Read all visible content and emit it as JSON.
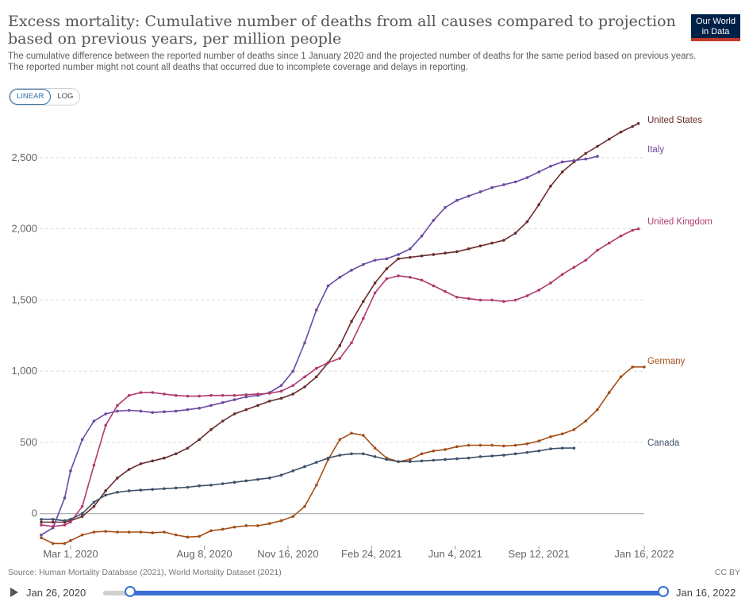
{
  "title": "Excess mortality: Cumulative number of deaths from all causes compared to projection based on previous years, per million people",
  "subtitle": "The cumulative difference between the reported number of deaths since 1 January 2020 and the projected number of deaths for the same period based on previous years. The reported number might not count all deaths that occurred due to incomplete coverage and delays in reporting.",
  "logo": {
    "line1": "Our World",
    "line2": "in Data"
  },
  "scale_toggle": {
    "linear": "LINEAR",
    "log": "LOG",
    "selected": "linear"
  },
  "footer": {
    "source": "Source: Human Mortality Database (2021), World Mortality Dataset (2021)",
    "license": "CC BY"
  },
  "timeline": {
    "start": "Jan 26, 2020",
    "end": "Jan 16, 2022"
  },
  "colors": {
    "us": "#6b2c2c",
    "it": "#6b49a3",
    "uk": "#b03a6e",
    "de": "#a44e17",
    "ca": "#3e5069",
    "grid": "#dddddd"
  },
  "chart_data": {
    "type": "line",
    "x_axis": {
      "type": "date",
      "min": "2020-01-26",
      "max": "2022-01-16",
      "ticks": [
        {
          "date": "2020-03-01",
          "label": "Mar 1, 2020"
        },
        {
          "date": "2020-08-08",
          "label": "Aug 8, 2020"
        },
        {
          "date": "2020-11-16",
          "label": "Nov 16, 2020"
        },
        {
          "date": "2021-02-24",
          "label": "Feb 24, 2021"
        },
        {
          "date": "2021-06-04",
          "label": "Jun 4, 2021"
        },
        {
          "date": "2021-09-12",
          "label": "Sep 12, 2021"
        },
        {
          "date": "2022-01-16",
          "label": "Jan 16, 2022"
        }
      ]
    },
    "y_axis": {
      "min": -230,
      "max": 2800,
      "ticks": [
        {
          "value": 0,
          "label": "0"
        },
        {
          "value": 500,
          "label": "500"
        },
        {
          "value": 1000,
          "label": "1,000"
        },
        {
          "value": 1500,
          "label": "1,500"
        },
        {
          "value": 2000,
          "label": "2,000"
        },
        {
          "value": 2500,
          "label": "2,500"
        }
      ],
      "grid": true
    },
    "series": [
      {
        "name": "United States",
        "color_key": "us",
        "points": [
          [
            "2020-01-26",
            -60
          ],
          [
            "2020-02-09",
            -60
          ],
          [
            "2020-02-23",
            -60
          ],
          [
            "2020-03-01",
            -50
          ],
          [
            "2020-03-15",
            -20
          ],
          [
            "2020-03-29",
            50
          ],
          [
            "2020-04-12",
            160
          ],
          [
            "2020-04-26",
            250
          ],
          [
            "2020-05-10",
            310
          ],
          [
            "2020-05-24",
            350
          ],
          [
            "2020-06-07",
            370
          ],
          [
            "2020-06-21",
            390
          ],
          [
            "2020-07-05",
            420
          ],
          [
            "2020-07-19",
            460
          ],
          [
            "2020-08-02",
            520
          ],
          [
            "2020-08-16",
            590
          ],
          [
            "2020-08-30",
            650
          ],
          [
            "2020-09-13",
            700
          ],
          [
            "2020-09-27",
            730
          ],
          [
            "2020-10-11",
            760
          ],
          [
            "2020-10-25",
            790
          ],
          [
            "2020-11-08",
            810
          ],
          [
            "2020-11-22",
            840
          ],
          [
            "2020-12-06",
            890
          ],
          [
            "2020-12-20",
            960
          ],
          [
            "2021-01-03",
            1060
          ],
          [
            "2021-01-17",
            1180
          ],
          [
            "2021-01-31",
            1350
          ],
          [
            "2021-02-14",
            1490
          ],
          [
            "2021-02-28",
            1620
          ],
          [
            "2021-03-14",
            1720
          ],
          [
            "2021-03-28",
            1790
          ],
          [
            "2021-04-11",
            1800
          ],
          [
            "2021-04-25",
            1810
          ],
          [
            "2021-05-09",
            1820
          ],
          [
            "2021-05-23",
            1830
          ],
          [
            "2021-06-06",
            1840
          ],
          [
            "2021-06-20",
            1860
          ],
          [
            "2021-07-04",
            1880
          ],
          [
            "2021-07-18",
            1900
          ],
          [
            "2021-08-01",
            1920
          ],
          [
            "2021-08-15",
            1970
          ],
          [
            "2021-08-29",
            2050
          ],
          [
            "2021-09-12",
            2170
          ],
          [
            "2021-09-26",
            2300
          ],
          [
            "2021-10-10",
            2400
          ],
          [
            "2021-10-24",
            2470
          ],
          [
            "2021-11-07",
            2530
          ],
          [
            "2021-11-21",
            2580
          ],
          [
            "2021-12-05",
            2630
          ],
          [
            "2021-12-19",
            2680
          ],
          [
            "2022-01-02",
            2720
          ],
          [
            "2022-01-09",
            2740
          ]
        ]
      },
      {
        "name": "Italy",
        "color_key": "it",
        "points": [
          [
            "2020-01-26",
            -150
          ],
          [
            "2020-02-09",
            -100
          ],
          [
            "2020-02-23",
            110
          ],
          [
            "2020-03-01",
            300
          ],
          [
            "2020-03-15",
            520
          ],
          [
            "2020-03-29",
            650
          ],
          [
            "2020-04-12",
            700
          ],
          [
            "2020-04-26",
            720
          ],
          [
            "2020-05-10",
            725
          ],
          [
            "2020-05-24",
            720
          ],
          [
            "2020-06-07",
            710
          ],
          [
            "2020-06-21",
            715
          ],
          [
            "2020-07-05",
            720
          ],
          [
            "2020-07-19",
            730
          ],
          [
            "2020-08-02",
            740
          ],
          [
            "2020-08-16",
            760
          ],
          [
            "2020-08-30",
            780
          ],
          [
            "2020-09-13",
            800
          ],
          [
            "2020-09-27",
            820
          ],
          [
            "2020-10-11",
            830
          ],
          [
            "2020-10-25",
            850
          ],
          [
            "2020-11-08",
            900
          ],
          [
            "2020-11-22",
            1000
          ],
          [
            "2020-12-06",
            1200
          ],
          [
            "2020-12-20",
            1430
          ],
          [
            "2021-01-03",
            1600
          ],
          [
            "2021-01-17",
            1660
          ],
          [
            "2021-01-31",
            1710
          ],
          [
            "2021-02-14",
            1750
          ],
          [
            "2021-02-28",
            1780
          ],
          [
            "2021-03-14",
            1790
          ],
          [
            "2021-03-28",
            1820
          ],
          [
            "2021-04-11",
            1860
          ],
          [
            "2021-04-25",
            1950
          ],
          [
            "2021-05-09",
            2060
          ],
          [
            "2021-05-23",
            2150
          ],
          [
            "2021-06-06",
            2200
          ],
          [
            "2021-06-20",
            2230
          ],
          [
            "2021-07-04",
            2260
          ],
          [
            "2021-07-18",
            2290
          ],
          [
            "2021-08-01",
            2310
          ],
          [
            "2021-08-15",
            2330
          ],
          [
            "2021-08-29",
            2360
          ],
          [
            "2021-09-12",
            2400
          ],
          [
            "2021-09-26",
            2440
          ],
          [
            "2021-10-10",
            2470
          ],
          [
            "2021-10-24",
            2480
          ],
          [
            "2021-11-07",
            2490
          ],
          [
            "2021-11-21",
            2510
          ]
        ]
      },
      {
        "name": "United Kingdom",
        "color_key": "uk",
        "points": [
          [
            "2020-01-26",
            -80
          ],
          [
            "2020-02-09",
            -90
          ],
          [
            "2020-02-23",
            -80
          ],
          [
            "2020-03-01",
            -60
          ],
          [
            "2020-03-15",
            50
          ],
          [
            "2020-03-29",
            340
          ],
          [
            "2020-04-12",
            620
          ],
          [
            "2020-04-26",
            760
          ],
          [
            "2020-05-10",
            830
          ],
          [
            "2020-05-24",
            850
          ],
          [
            "2020-06-07",
            850
          ],
          [
            "2020-06-21",
            840
          ],
          [
            "2020-07-05",
            830
          ],
          [
            "2020-07-19",
            825
          ],
          [
            "2020-08-02",
            825
          ],
          [
            "2020-08-16",
            830
          ],
          [
            "2020-08-30",
            830
          ],
          [
            "2020-09-13",
            830
          ],
          [
            "2020-09-27",
            835
          ],
          [
            "2020-10-11",
            840
          ],
          [
            "2020-10-25",
            845
          ],
          [
            "2020-11-08",
            860
          ],
          [
            "2020-11-22",
            900
          ],
          [
            "2020-12-06",
            960
          ],
          [
            "2020-12-20",
            1020
          ],
          [
            "2021-01-03",
            1060
          ],
          [
            "2021-01-17",
            1090
          ],
          [
            "2021-01-31",
            1200
          ],
          [
            "2021-02-14",
            1370
          ],
          [
            "2021-02-28",
            1550
          ],
          [
            "2021-03-14",
            1650
          ],
          [
            "2021-03-28",
            1670
          ],
          [
            "2021-04-11",
            1660
          ],
          [
            "2021-04-25",
            1640
          ],
          [
            "2021-05-09",
            1600
          ],
          [
            "2021-05-23",
            1560
          ],
          [
            "2021-06-06",
            1520
          ],
          [
            "2021-06-20",
            1510
          ],
          [
            "2021-07-04",
            1500
          ],
          [
            "2021-07-18",
            1500
          ],
          [
            "2021-08-01",
            1490
          ],
          [
            "2021-08-15",
            1500
          ],
          [
            "2021-08-29",
            1530
          ],
          [
            "2021-09-12",
            1570
          ],
          [
            "2021-09-26",
            1620
          ],
          [
            "2021-10-10",
            1680
          ],
          [
            "2021-10-24",
            1730
          ],
          [
            "2021-11-07",
            1780
          ],
          [
            "2021-11-21",
            1850
          ],
          [
            "2021-12-05",
            1900
          ],
          [
            "2021-12-19",
            1950
          ],
          [
            "2022-01-02",
            1990
          ],
          [
            "2022-01-09",
            2000
          ]
        ]
      },
      {
        "name": "Germany",
        "color_key": "de",
        "points": [
          [
            "2020-01-26",
            -170
          ],
          [
            "2020-02-09",
            -210
          ],
          [
            "2020-02-23",
            -210
          ],
          [
            "2020-03-01",
            -190
          ],
          [
            "2020-03-15",
            -150
          ],
          [
            "2020-03-29",
            -130
          ],
          [
            "2020-04-12",
            -125
          ],
          [
            "2020-04-26",
            -130
          ],
          [
            "2020-05-10",
            -130
          ],
          [
            "2020-05-24",
            -130
          ],
          [
            "2020-06-07",
            -135
          ],
          [
            "2020-06-21",
            -130
          ],
          [
            "2020-07-05",
            -150
          ],
          [
            "2020-07-19",
            -165
          ],
          [
            "2020-08-02",
            -160
          ],
          [
            "2020-08-16",
            -120
          ],
          [
            "2020-08-30",
            -110
          ],
          [
            "2020-09-13",
            -95
          ],
          [
            "2020-09-27",
            -85
          ],
          [
            "2020-10-11",
            -85
          ],
          [
            "2020-10-25",
            -70
          ],
          [
            "2020-11-08",
            -50
          ],
          [
            "2020-11-22",
            -20
          ],
          [
            "2020-12-06",
            50
          ],
          [
            "2020-12-20",
            200
          ],
          [
            "2021-01-03",
            380
          ],
          [
            "2021-01-17",
            520
          ],
          [
            "2021-01-31",
            565
          ],
          [
            "2021-02-14",
            550
          ],
          [
            "2021-02-28",
            460
          ],
          [
            "2021-03-14",
            390
          ],
          [
            "2021-03-28",
            365
          ],
          [
            "2021-04-11",
            380
          ],
          [
            "2021-04-25",
            420
          ],
          [
            "2021-05-09",
            440
          ],
          [
            "2021-05-23",
            450
          ],
          [
            "2021-06-06",
            470
          ],
          [
            "2021-06-20",
            480
          ],
          [
            "2021-07-04",
            480
          ],
          [
            "2021-07-18",
            480
          ],
          [
            "2021-08-01",
            475
          ],
          [
            "2021-08-15",
            480
          ],
          [
            "2021-08-29",
            490
          ],
          [
            "2021-09-12",
            510
          ],
          [
            "2021-09-26",
            540
          ],
          [
            "2021-10-10",
            560
          ],
          [
            "2021-10-24",
            590
          ],
          [
            "2021-11-07",
            650
          ],
          [
            "2021-11-21",
            730
          ],
          [
            "2021-12-05",
            850
          ],
          [
            "2021-12-19",
            960
          ],
          [
            "2022-01-02",
            1030
          ],
          [
            "2022-01-16",
            1030
          ]
        ]
      },
      {
        "name": "Canada",
        "color_key": "ca",
        "points": [
          [
            "2020-01-26",
            -40
          ],
          [
            "2020-02-09",
            -40
          ],
          [
            "2020-02-23",
            -50
          ],
          [
            "2020-03-01",
            -40
          ],
          [
            "2020-03-15",
            0
          ],
          [
            "2020-03-29",
            80
          ],
          [
            "2020-04-12",
            130
          ],
          [
            "2020-04-26",
            150
          ],
          [
            "2020-05-10",
            160
          ],
          [
            "2020-05-24",
            165
          ],
          [
            "2020-06-07",
            170
          ],
          [
            "2020-06-21",
            175
          ],
          [
            "2020-07-05",
            180
          ],
          [
            "2020-07-19",
            185
          ],
          [
            "2020-08-02",
            195
          ],
          [
            "2020-08-16",
            200
          ],
          [
            "2020-08-30",
            210
          ],
          [
            "2020-09-13",
            220
          ],
          [
            "2020-09-27",
            230
          ],
          [
            "2020-10-11",
            240
          ],
          [
            "2020-10-25",
            250
          ],
          [
            "2020-11-08",
            270
          ],
          [
            "2020-11-22",
            300
          ],
          [
            "2020-12-06",
            330
          ],
          [
            "2020-12-20",
            360
          ],
          [
            "2021-01-03",
            390
          ],
          [
            "2021-01-17",
            410
          ],
          [
            "2021-01-31",
            420
          ],
          [
            "2021-02-14",
            420
          ],
          [
            "2021-02-28",
            400
          ],
          [
            "2021-03-14",
            380
          ],
          [
            "2021-03-28",
            365
          ],
          [
            "2021-04-11",
            365
          ],
          [
            "2021-04-25",
            370
          ],
          [
            "2021-05-09",
            375
          ],
          [
            "2021-05-23",
            380
          ],
          [
            "2021-06-06",
            385
          ],
          [
            "2021-06-20",
            390
          ],
          [
            "2021-07-04",
            400
          ],
          [
            "2021-07-18",
            405
          ],
          [
            "2021-08-01",
            410
          ],
          [
            "2021-08-15",
            420
          ],
          [
            "2021-08-29",
            430
          ],
          [
            "2021-09-12",
            440
          ],
          [
            "2021-09-26",
            455
          ],
          [
            "2021-10-10",
            460
          ],
          [
            "2021-10-24",
            460
          ]
        ]
      }
    ]
  }
}
